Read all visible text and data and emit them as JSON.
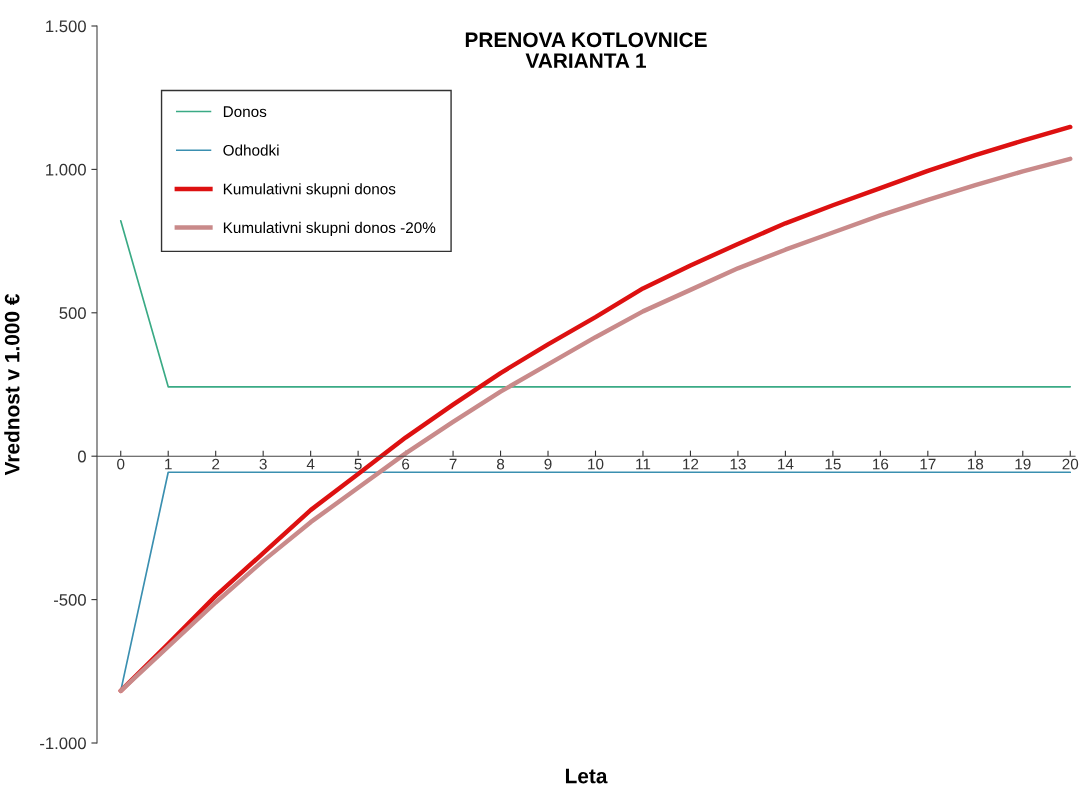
{
  "chart_data": {
    "type": "line",
    "title": "PRENOVA KOTLOVNICE\nVARIANTA 1",
    "xlabel": "Leta",
    "ylabel": "Vrednost v 1.000 €",
    "categories": [
      "0",
      "1",
      "2",
      "3",
      "4",
      "5",
      "6",
      "7",
      "8",
      "9",
      "10",
      "11",
      "12",
      "13",
      "14",
      "15",
      "16",
      "17",
      "18",
      "19",
      "20"
    ],
    "series": [
      {
        "name": "Donos",
        "color": "#3aaa85",
        "values": [
          821,
          242,
          242,
          242,
          242,
          242,
          242,
          242,
          242,
          242,
          242,
          242,
          242,
          242,
          242,
          242,
          242,
          242,
          242,
          242,
          242
        ]
      },
      {
        "name": "Odhodki",
        "color": "#3a8fb0",
        "values": [
          -818,
          -56,
          -56,
          -56,
          -56,
          -56,
          -56,
          -56,
          -56,
          -56,
          -56,
          -56,
          -56,
          -56,
          -56,
          -56,
          -56,
          -56,
          -56,
          -56,
          -56
        ]
      },
      {
        "name": "Kumulativni skupni donos",
        "color": "#dd1111",
        "values": [
          -818,
          -654,
          -487,
          -338,
          -188,
          -62,
          65,
          180,
          290,
          390,
          485,
          585,
          665,
          740,
          812,
          875,
          935,
          995,
          1050,
          1100,
          1148
        ]
      },
      {
        "name": "Kumulativni skupni donos -20%",
        "color": "#c98a8a",
        "values": [
          -818,
          -664,
          -510,
          -365,
          -230,
          -110,
          10,
          120,
          225,
          320,
          415,
          505,
          580,
          655,
          720,
          780,
          840,
          894,
          945,
          993,
          1037
        ]
      }
    ],
    "ylim": [
      -1000,
      1500
    ],
    "yticks": [
      {
        "value": -1000,
        "label": "-1.000"
      },
      -500,
      0,
      500,
      {
        "value": 1000,
        "label": "1.000"
      },
      {
        "value": 1500,
        "label": "1.500"
      }
    ],
    "legend": "top left",
    "grid": false,
    "marker": "none",
    "line_style": "solid"
  }
}
